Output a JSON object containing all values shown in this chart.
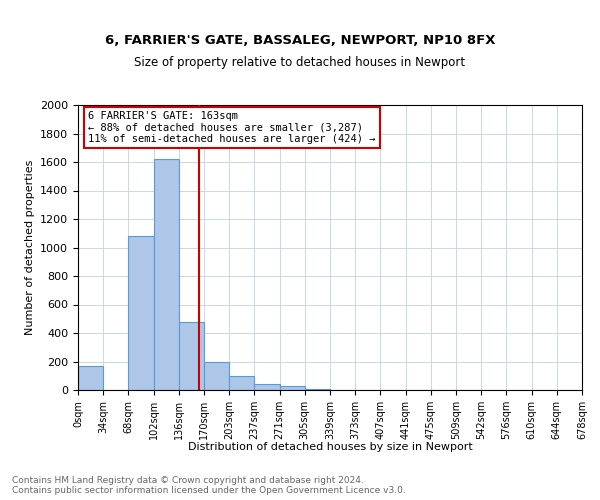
{
  "title": "6, FARRIER'S GATE, BASSALEG, NEWPORT, NP10 8FX",
  "subtitle": "Size of property relative to detached houses in Newport",
  "xlabel": "Distribution of detached houses by size in Newport",
  "ylabel": "Number of detached properties",
  "bin_labels": [
    "0sqm",
    "34sqm",
    "68sqm",
    "102sqm",
    "136sqm",
    "170sqm",
    "203sqm",
    "237sqm",
    "271sqm",
    "305sqm",
    "339sqm",
    "373sqm",
    "407sqm",
    "441sqm",
    "475sqm",
    "509sqm",
    "542sqm",
    "576sqm",
    "610sqm",
    "644sqm",
    "678sqm"
  ],
  "bar_values": [
    165,
    0,
    1080,
    1620,
    480,
    200,
    100,
    40,
    25,
    10,
    0,
    0,
    0,
    0,
    0,
    0,
    0,
    0,
    0,
    0
  ],
  "bar_color": "#aec6e8",
  "bar_edge_color": "#5b9bd5",
  "annotation_line_color": "#cc0000",
  "annotation_box_text": "6 FARRIER'S GATE: 163sqm\n← 88% of detached houses are smaller (3,287)\n11% of semi-detached houses are larger (424) →",
  "annotation_box_color": "#cc0000",
  "background_color": "#ffffff",
  "grid_color": "#c8d8e8",
  "footer_text": "Contains HM Land Registry data © Crown copyright and database right 2024.\nContains public sector information licensed under the Open Government Licence v3.0.",
  "ylim": [
    0,
    2000
  ],
  "yticks": [
    0,
    200,
    400,
    600,
    800,
    1000,
    1200,
    1400,
    1600,
    1800,
    2000
  ],
  "bin_width": 34,
  "property_sqm": 163
}
